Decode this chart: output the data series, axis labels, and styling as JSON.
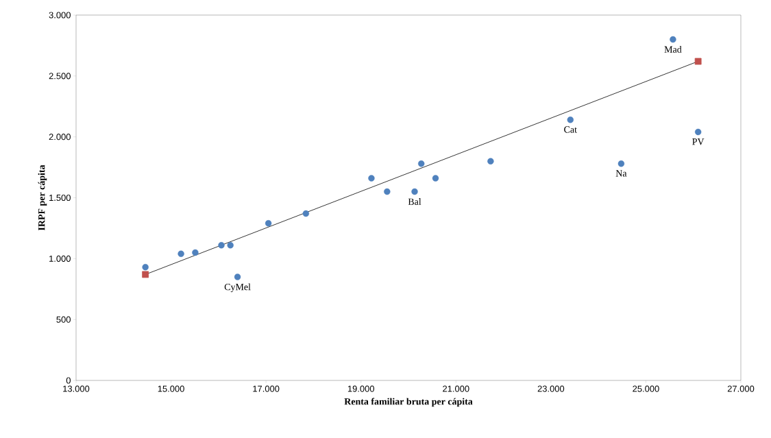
{
  "chart_data": {
    "type": "scatter",
    "xlabel": "Renta familiar bruta per cápita",
    "ylabel": "IRPF per cápita",
    "series": [
      {
        "color": "#4f81bd",
        "marker": "circle",
        "x": [
          14460,
          15210,
          15510,
          16060,
          16250,
          16400,
          17050,
          17840,
          19220,
          19550,
          20130,
          20270,
          20570,
          21730,
          23410,
          24480,
          25570,
          26100
        ],
        "values": [
          930,
          1040,
          1050,
          1110,
          1110,
          850,
          1290,
          1370,
          1660,
          1550,
          1550,
          1780,
          1660,
          1800,
          2140,
          1780,
          2800,
          2040
        ]
      },
      {
        "type": "line",
        "color": "#c0504d",
        "marker": "square",
        "x": [
          14460,
          26100
        ],
        "values": [
          870,
          2620
        ]
      }
    ],
    "annotations": [
      {
        "text": "CyMel",
        "x": 16400,
        "y": 850
      },
      {
        "text": "Bal",
        "x": 20130,
        "y": 1550
      },
      {
        "text": "Cat",
        "x": 23410,
        "y": 2140
      },
      {
        "text": "Na",
        "x": 24480,
        "y": 1780
      },
      {
        "text": "Mad",
        "x": 25570,
        "y": 2800
      },
      {
        "text": "PV",
        "x": 26100,
        "y": 2040
      }
    ],
    "xlim": [
      13000,
      27000
    ],
    "xticks": [
      {
        "value": 13000,
        "label": "13.000"
      },
      {
        "value": 15000,
        "label": "15.000"
      },
      {
        "value": 17000,
        "label": "17.000"
      },
      {
        "value": 19000,
        "label": "19.000"
      },
      {
        "value": 21000,
        "label": "21.000"
      },
      {
        "value": 23000,
        "label": "23.000"
      },
      {
        "value": 25000,
        "label": "25.000"
      },
      {
        "value": 27000,
        "label": "27.000"
      }
    ],
    "ylim": [
      0,
      3000
    ],
    "yticks": [
      0,
      500,
      {
        "value": 1000,
        "label": "1.000"
      },
      {
        "value": 1500,
        "label": "1.500"
      },
      {
        "value": 2000,
        "label": "2.000"
      },
      {
        "value": 2500,
        "label": "2.500"
      },
      {
        "value": 3000,
        "label": "3.000"
      }
    ]
  }
}
